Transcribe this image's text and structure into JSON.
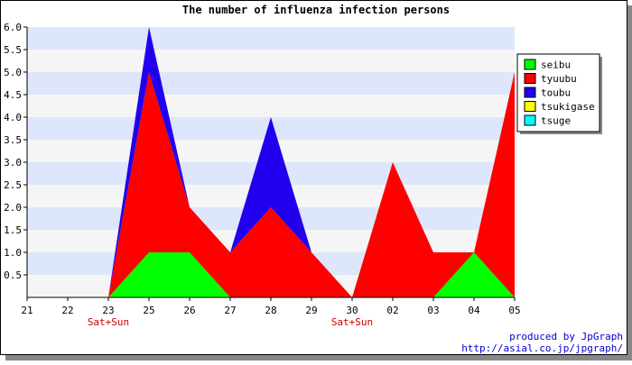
{
  "chart_data": {
    "type": "area",
    "stacked": true,
    "title": "The number of influenza infection persons",
    "x": [
      "21",
      "22",
      "23",
      "25",
      "26",
      "27",
      "28",
      "29",
      "30",
      "02",
      "03",
      "04",
      "05"
    ],
    "x_annotations": [
      {
        "x": "23",
        "text": "Sat+Sun"
      },
      {
        "x": "30",
        "text": "Sat+Sun"
      }
    ],
    "ylim": [
      0,
      6
    ],
    "y_ticks": [
      "0.5",
      "1.0",
      "1.5",
      "2.0",
      "2.5",
      "3.0",
      "3.5",
      "4.0",
      "4.5",
      "5.0",
      "5.5",
      "6.0"
    ],
    "grid": "horizontal bands",
    "legend_position": "right",
    "series": [
      {
        "name": "seibu",
        "color": "#00ff00",
        "values": [
          0,
          0,
          0,
          1,
          1,
          0,
          0,
          0,
          0,
          0,
          0,
          1,
          0
        ]
      },
      {
        "name": "tyuubu",
        "color": "#ff0000",
        "values": [
          0,
          0,
          0,
          4,
          1,
          1,
          2,
          1,
          0,
          3,
          1,
          0,
          5
        ]
      },
      {
        "name": "toubu",
        "color": "#2200ee",
        "values": [
          0,
          0,
          0,
          1,
          0,
          0,
          2,
          0,
          0,
          0,
          0,
          0,
          0
        ]
      },
      {
        "name": "tsukigase",
        "color": "#ffff00",
        "values": [
          0,
          0,
          0,
          0,
          0,
          0,
          0,
          0,
          0,
          0,
          0,
          0,
          0
        ]
      },
      {
        "name": "tsuge",
        "color": "#00ffff",
        "values": [
          0,
          0,
          0,
          0,
          0,
          0,
          0,
          0,
          0,
          0,
          0,
          0,
          0
        ]
      }
    ]
  },
  "credits": {
    "line1": "produced by JpGraph",
    "line2": "http://asial.co.jp/jpgraph/"
  },
  "colors": {
    "band_a": "#dde6fb",
    "band_b": "#f5f5f5",
    "annotation": "#cc0000",
    "credit": "#0000cc"
  }
}
